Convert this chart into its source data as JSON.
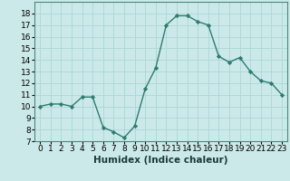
{
  "x": [
    0,
    1,
    2,
    3,
    4,
    5,
    6,
    7,
    8,
    9,
    10,
    11,
    12,
    13,
    14,
    15,
    16,
    17,
    18,
    19,
    20,
    21,
    22,
    23
  ],
  "y": [
    10,
    10.2,
    10.2,
    10.0,
    10.8,
    10.8,
    8.2,
    7.8,
    7.3,
    8.3,
    11.5,
    13.3,
    17.0,
    17.8,
    17.8,
    17.3,
    17.0,
    14.3,
    13.8,
    14.2,
    13.0,
    12.2,
    12.0,
    11.0
  ],
  "line_color": "#2d7c6e",
  "marker": "D",
  "marker_size": 2.2,
  "bg_color": "#cce9e9",
  "grid_color": "#b0d8d8",
  "xlabel": "Humidex (Indice chaleur)",
  "ylim": [
    7,
    19
  ],
  "xlim": [
    -0.5,
    23.5
  ],
  "yticks": [
    7,
    8,
    9,
    10,
    11,
    12,
    13,
    14,
    15,
    16,
    17,
    18
  ],
  "xlabel_fontsize": 7.5,
  "tick_fontsize": 6.5,
  "line_width": 1.0
}
